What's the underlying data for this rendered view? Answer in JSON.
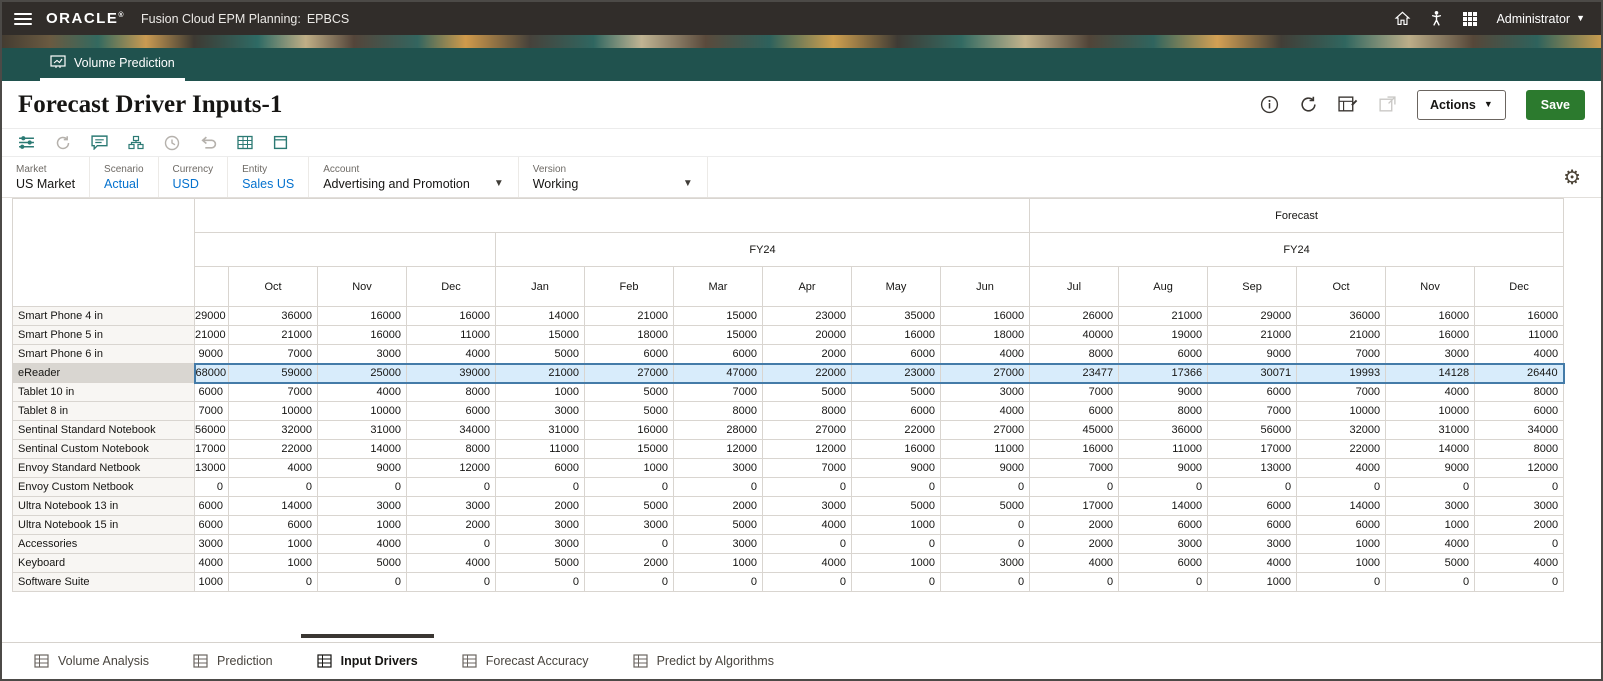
{
  "topbar": {
    "brand": "ORACLE",
    "product": "Fusion Cloud EPM Planning:",
    "app": "EPBCS",
    "user": "Administrator",
    "icons": [
      "home-icon",
      "accessibility-icon",
      "waffle-grid-icon"
    ]
  },
  "tabbar": {
    "tab_label": "Volume Prediction"
  },
  "page": {
    "title": "Forecast Driver Inputs-1",
    "actions_label": "Actions",
    "save_label": "Save",
    "header_icons": [
      "info-icon",
      "refresh-icon",
      "form-edit-icon",
      "detach-icon"
    ]
  },
  "toolbar_icons": [
    {
      "name": "filter-sliders-icon",
      "enabled": true
    },
    {
      "name": "refresh-icon",
      "enabled": false
    },
    {
      "name": "comment-icon",
      "enabled": true
    },
    {
      "name": "hierarchy-icon",
      "enabled": true
    },
    {
      "name": "history-icon",
      "enabled": false
    },
    {
      "name": "undo-icon",
      "enabled": false
    },
    {
      "name": "grid-icon",
      "enabled": true
    },
    {
      "name": "detach-window-icon",
      "enabled": true
    }
  ],
  "pov": {
    "items": [
      {
        "dimension": "Market",
        "value": "US Market",
        "link": false,
        "dropdown": false
      },
      {
        "dimension": "Scenario",
        "value": "Actual",
        "link": true,
        "dropdown": false
      },
      {
        "dimension": "Currency",
        "value": "USD",
        "link": true,
        "dropdown": false
      },
      {
        "dimension": "Entity",
        "value": "Sales US",
        "link": true,
        "dropdown": false
      },
      {
        "dimension": "Account",
        "value": "Advertising and Promotion",
        "link": false,
        "dropdown": true
      },
      {
        "dimension": "Version",
        "value": "Working",
        "link": false,
        "dropdown": true
      }
    ]
  },
  "grid": {
    "scenario_header": "Forecast",
    "year_headers": [
      "FY24",
      "FY24"
    ],
    "first_column_clipped": true,
    "months": [
      "Oct",
      "Nov",
      "Dec",
      "Jan",
      "Feb",
      "Mar",
      "Apr",
      "May",
      "Jun",
      "Jul",
      "Aug",
      "Sep",
      "Oct",
      "Nov",
      "Dec"
    ],
    "selected_row": "eReader",
    "rows": [
      {
        "name": "Smart Phone 4 in",
        "values": [
          29000,
          36000,
          16000,
          16000,
          14000,
          21000,
          15000,
          23000,
          35000,
          16000,
          26000,
          21000,
          29000,
          36000,
          16000,
          16000
        ]
      },
      {
        "name": "Smart Phone 5 in",
        "values": [
          21000,
          21000,
          16000,
          11000,
          15000,
          18000,
          15000,
          20000,
          16000,
          18000,
          40000,
          19000,
          21000,
          21000,
          16000,
          11000
        ]
      },
      {
        "name": "Smart Phone 6 in",
        "values": [
          9000,
          7000,
          3000,
          4000,
          5000,
          6000,
          6000,
          2000,
          6000,
          4000,
          8000,
          6000,
          9000,
          7000,
          3000,
          4000
        ]
      },
      {
        "name": "eReader",
        "values": [
          68000,
          59000,
          25000,
          39000,
          21000,
          27000,
          47000,
          22000,
          23000,
          27000,
          23477,
          17366,
          30071,
          19993,
          14128,
          26440
        ]
      },
      {
        "name": "Tablet 10 in",
        "values": [
          6000,
          7000,
          4000,
          8000,
          1000,
          5000,
          7000,
          5000,
          5000,
          3000,
          7000,
          9000,
          6000,
          7000,
          4000,
          8000
        ]
      },
      {
        "name": "Tablet 8 in",
        "values": [
          7000,
          10000,
          10000,
          6000,
          3000,
          5000,
          8000,
          8000,
          6000,
          4000,
          6000,
          8000,
          7000,
          10000,
          10000,
          6000
        ]
      },
      {
        "name": "Sentinal Standard Notebook",
        "values": [
          56000,
          32000,
          31000,
          34000,
          31000,
          16000,
          28000,
          27000,
          22000,
          27000,
          45000,
          36000,
          56000,
          32000,
          31000,
          34000
        ]
      },
      {
        "name": "Sentinal Custom Notebook",
        "values": [
          17000,
          22000,
          14000,
          8000,
          11000,
          15000,
          12000,
          12000,
          16000,
          11000,
          16000,
          11000,
          17000,
          22000,
          14000,
          8000
        ]
      },
      {
        "name": "Envoy Standard Netbook",
        "values": [
          13000,
          4000,
          9000,
          12000,
          6000,
          1000,
          3000,
          7000,
          9000,
          9000,
          7000,
          9000,
          13000,
          4000,
          9000,
          12000
        ]
      },
      {
        "name": "Envoy Custom Netbook",
        "values": [
          0,
          0,
          0,
          0,
          0,
          0,
          0,
          0,
          0,
          0,
          0,
          0,
          0,
          0,
          0,
          0
        ]
      },
      {
        "name": "Ultra Notebook 13 in",
        "values": [
          6000,
          14000,
          3000,
          3000,
          2000,
          5000,
          2000,
          3000,
          5000,
          5000,
          17000,
          14000,
          6000,
          14000,
          3000,
          3000
        ]
      },
      {
        "name": "Ultra Notebook 15 in",
        "values": [
          6000,
          6000,
          1000,
          2000,
          3000,
          3000,
          5000,
          4000,
          1000,
          0,
          2000,
          6000,
          6000,
          6000,
          1000,
          2000
        ]
      },
      {
        "name": "Accessories",
        "values": [
          3000,
          1000,
          4000,
          0,
          3000,
          0,
          3000,
          0,
          0,
          0,
          2000,
          3000,
          3000,
          1000,
          4000,
          0
        ]
      },
      {
        "name": "Keyboard",
        "values": [
          4000,
          1000,
          5000,
          4000,
          5000,
          2000,
          1000,
          4000,
          1000,
          3000,
          4000,
          6000,
          4000,
          1000,
          5000,
          4000
        ]
      },
      {
        "name": "Software Suite",
        "values": [
          1000,
          0,
          0,
          0,
          0,
          0,
          0,
          0,
          0,
          0,
          0,
          0,
          1000,
          0,
          0,
          0
        ]
      }
    ]
  },
  "bottombar": {
    "tabs": [
      {
        "label": "Volume Analysis",
        "active": false
      },
      {
        "label": "Prediction",
        "active": false
      },
      {
        "label": "Input Drivers",
        "active": true
      },
      {
        "label": "Forecast Accuracy",
        "active": false
      },
      {
        "label": "Predict by Algorithms",
        "active": false
      }
    ]
  }
}
